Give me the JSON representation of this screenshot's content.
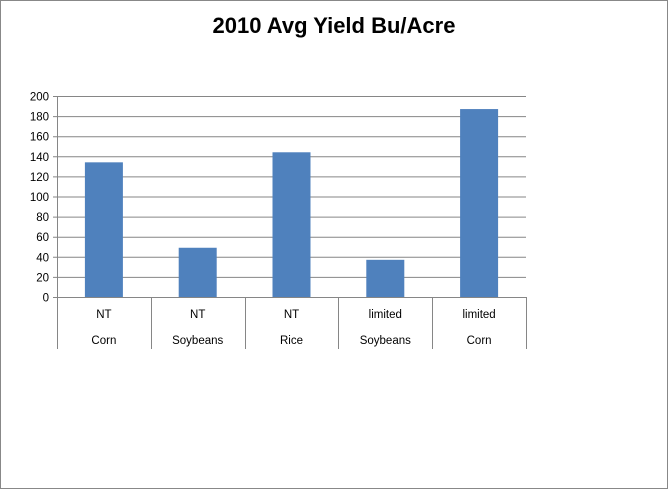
{
  "chart_data": {
    "type": "bar",
    "title": "2010 Avg Yield Bu/Acre",
    "categories": [
      [
        "NT",
        "Corn"
      ],
      [
        "NT",
        "Soybeans"
      ],
      [
        "NT",
        "Rice"
      ],
      [
        "limited",
        "Soybeans"
      ],
      [
        "limited",
        "Corn"
      ]
    ],
    "values": [
      134,
      49,
      144,
      37,
      187
    ],
    "ylim": [
      0,
      200
    ],
    "yticks": [
      0,
      20,
      40,
      60,
      80,
      100,
      120,
      140,
      160,
      180,
      200
    ],
    "grid": true,
    "legend": "none",
    "bar_color": "#4F81BD",
    "grid_color": "#868686"
  }
}
